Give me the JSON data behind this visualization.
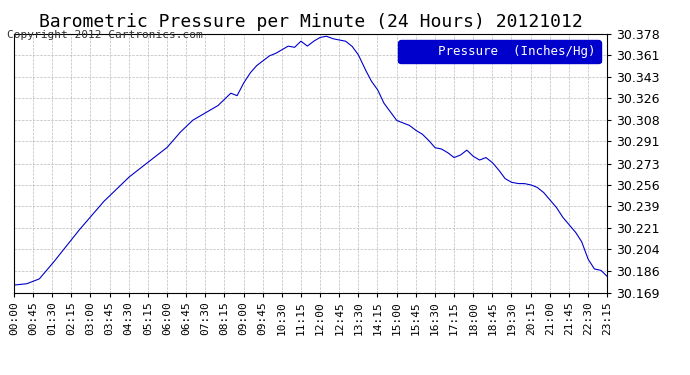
{
  "title": "Barometric Pressure per Minute (24 Hours) 20121012",
  "copyright": "Copyright 2012 Cartronics.com",
  "legend_label": "Pressure  (Inches/Hg)",
  "background_color": "#ffffff",
  "plot_bg_color": "#ffffff",
  "line_color": "#0000cc",
  "grid_color": "#aaaaaa",
  "yticks": [
    30.169,
    30.186,
    30.204,
    30.221,
    30.239,
    30.256,
    30.273,
    30.291,
    30.308,
    30.326,
    30.343,
    30.361,
    30.378
  ],
  "ymin": 30.169,
  "ymax": 30.378,
  "xtick_labels": [
    "00:00",
    "00:45",
    "01:30",
    "02:15",
    "03:00",
    "03:45",
    "04:30",
    "05:15",
    "06:00",
    "06:45",
    "07:30",
    "08:15",
    "09:00",
    "09:45",
    "10:30",
    "11:15",
    "12:00",
    "12:45",
    "13:30",
    "14:15",
    "15:00",
    "15:45",
    "16:30",
    "17:15",
    "18:00",
    "18:45",
    "19:30",
    "20:15",
    "21:00",
    "21:45",
    "22:30",
    "23:15"
  ],
  "key_times": [
    0,
    45,
    90,
    135,
    180,
    225,
    270,
    315,
    360,
    405,
    450,
    495,
    540,
    585,
    630,
    675,
    720,
    765,
    810,
    855,
    900,
    945,
    990,
    1035,
    1080,
    1125,
    1170,
    1215,
    1260,
    1305,
    1350,
    1395
  ],
  "key_values": [
    30.175,
    30.178,
    30.192,
    30.215,
    30.23,
    30.244,
    30.256,
    30.265,
    30.28,
    30.297,
    30.308,
    30.32,
    30.34,
    30.352,
    30.363,
    30.37,
    30.375,
    30.373,
    30.361,
    30.333,
    30.308,
    30.3,
    30.286,
    30.278,
    30.275,
    30.273,
    30.257,
    30.256,
    30.244,
    30.224,
    30.192,
    30.185
  ],
  "title_fontsize": 13,
  "copyright_fontsize": 8,
  "tick_fontsize": 8,
  "legend_fontsize": 9
}
